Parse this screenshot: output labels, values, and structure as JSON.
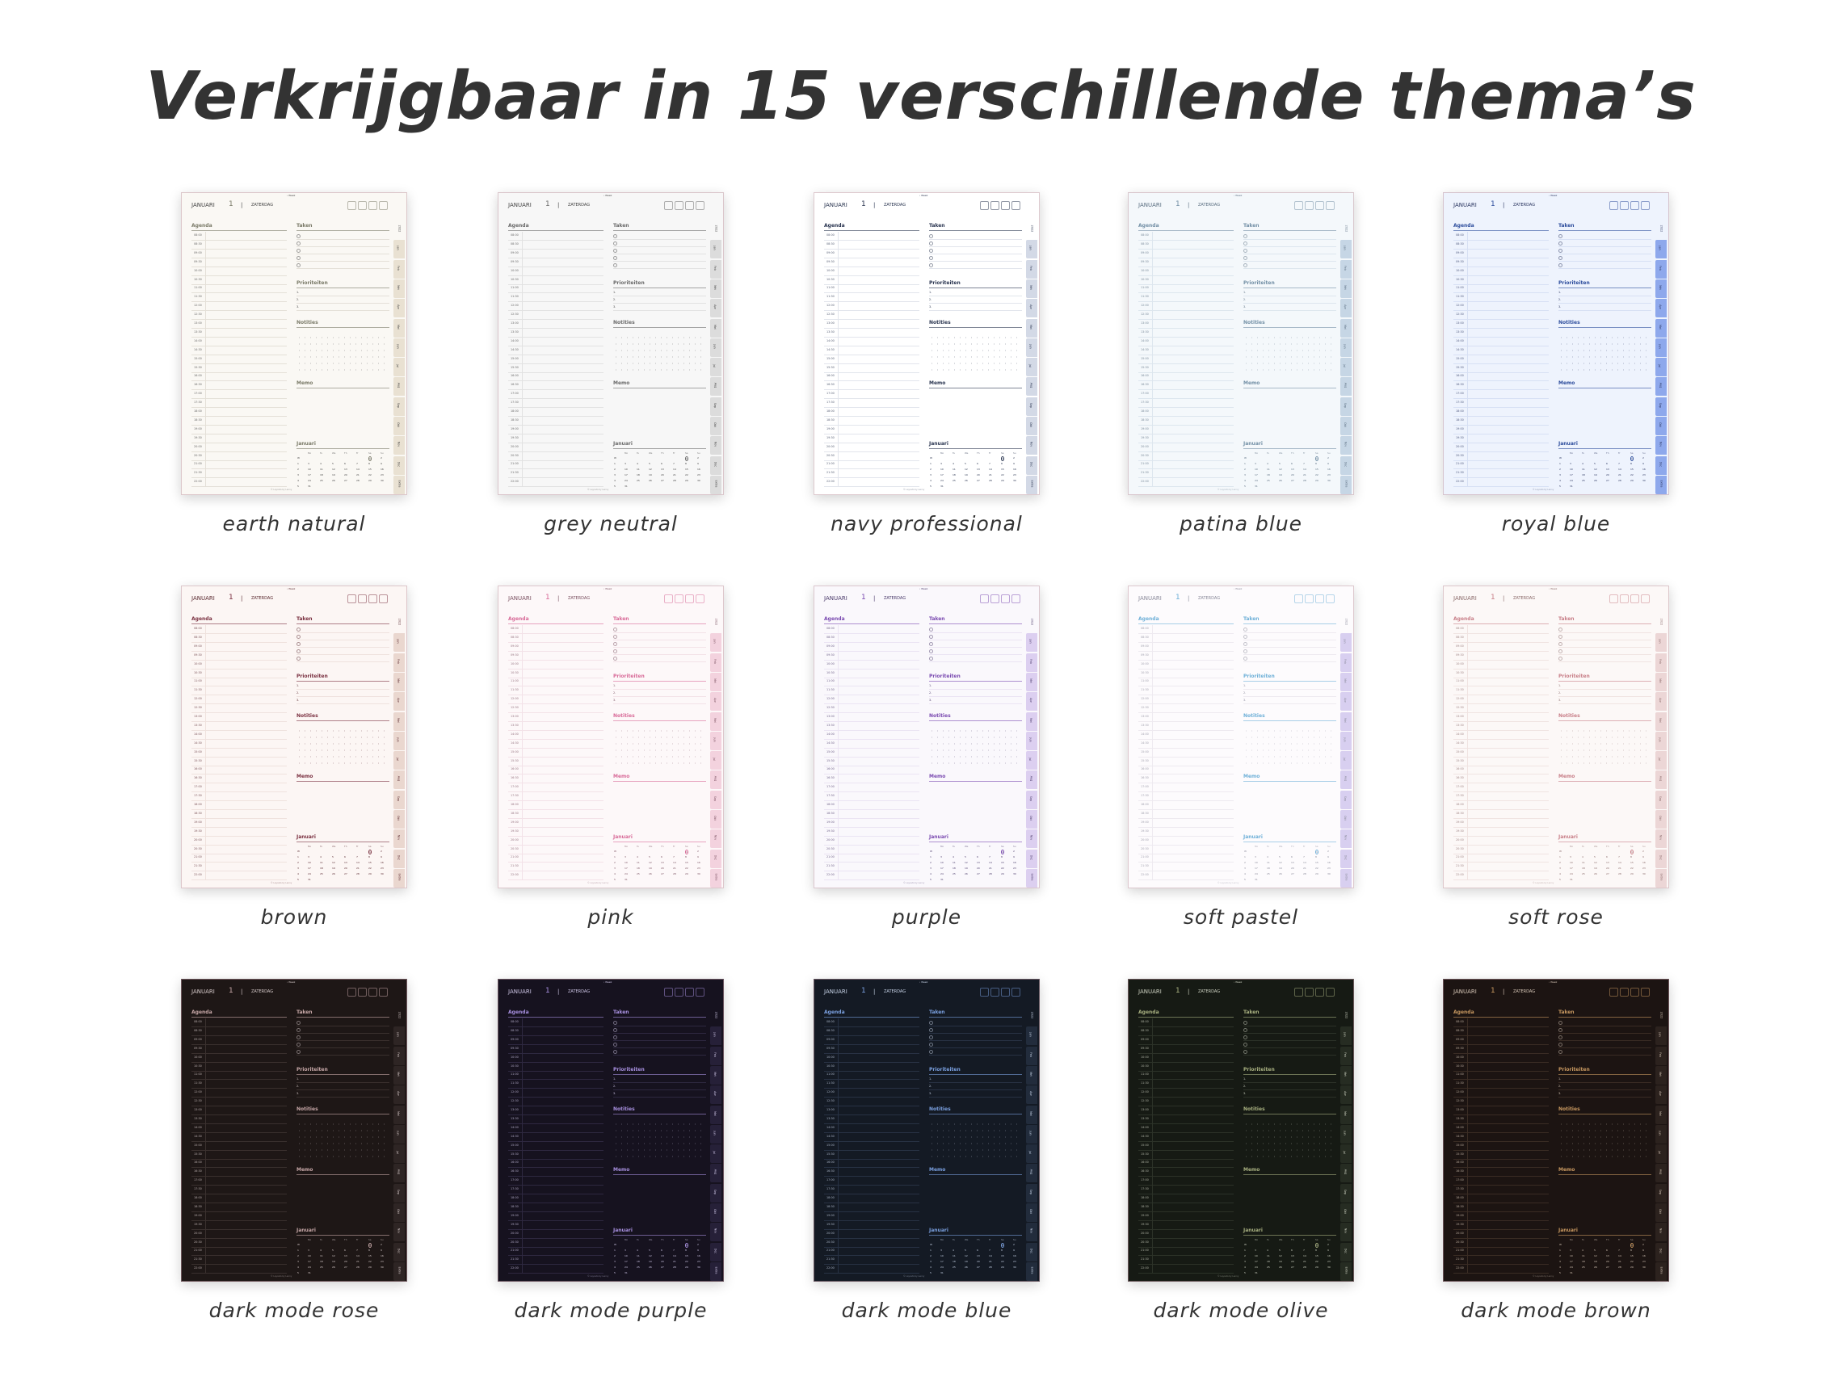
{
  "title": "Verkrijgbaar in 15 verschillende thema’s",
  "planner": {
    "nav": "‹ Week",
    "month": "JANUARI",
    "day": "1",
    "separator": "|",
    "weekday": "ZATERDAG",
    "agenda": "Agenda",
    "tasks": "Taken",
    "priorities": "Prioriteiten",
    "notes": "Notities",
    "memo": "Memo",
    "calendar_title": "Januari",
    "times": [
      "08:00",
      "08:30",
      "09:00",
      "09:30",
      "10:00",
      "10:30",
      "11:00",
      "11:30",
      "12:00",
      "12:30",
      "13:00",
      "13:30",
      "14:00",
      "14:30",
      "15:00",
      "15:30",
      "16:00",
      "16:30",
      "17:00",
      "17:30",
      "18:00",
      "18:30",
      "19:00",
      "19:30",
      "20:00",
      "20:30",
      "21:00",
      "21:30",
      "22:00"
    ],
    "priority_numbers": [
      "1.",
      "2.",
      "3."
    ],
    "weekdays": [
      "Mo",
      "Tu",
      "We",
      "Th",
      "Fr",
      "Sa",
      "Su"
    ],
    "weeks": [
      [
        "W",
        "",
        "",
        "",
        "",
        "",
        "1",
        "2"
      ],
      [
        "1",
        "3",
        "4",
        "5",
        "6",
        "7",
        "8",
        "9"
      ],
      [
        "2",
        "10",
        "11",
        "12",
        "13",
        "14",
        "15",
        "16"
      ],
      [
        "3",
        "17",
        "18",
        "19",
        "20",
        "21",
        "22",
        "23"
      ],
      [
        "4",
        "24",
        "25",
        "26",
        "27",
        "28",
        "29",
        "30"
      ],
      [
        "5",
        "31",
        "",
        "",
        "",
        "",
        "",
        ""
      ]
    ],
    "tabs": [
      "2022",
      "Jan",
      "Feb",
      "Mrt",
      "Apr",
      "Mei",
      "Jun",
      "Jul",
      "Aug",
      "Sep",
      "Okt",
      "Nov",
      "Dec",
      "Extra"
    ],
    "footer": "© Layouts by Lenny"
  },
  "themes": [
    {
      "name": "earth natural",
      "bg": "#faf8f4",
      "text": "#444444",
      "accent": "#7a7a68",
      "line": "#e4e0d8",
      "tab": "#e9e1d2"
    },
    {
      "name": "grey neutral",
      "bg": "#f7f7f7",
      "text": "#444444",
      "accent": "#6a6a6a",
      "line": "#e2e2e2",
      "tab": "#dcdcdc"
    },
    {
      "name": "navy professional",
      "bg": "#ffffff",
      "text": "#2a3550",
      "accent": "#2a3550",
      "line": "#e2e5ec",
      "tab": "#d3d9e6"
    },
    {
      "name": "patina blue",
      "bg": "#f4f8fb",
      "text": "#5a6e80",
      "accent": "#7390a6",
      "line": "#dde6ee",
      "tab": "#c6d6e5"
    },
    {
      "name": "royal blue",
      "bg": "#eef3fd",
      "text": "#2a3560",
      "accent": "#2c4c9c",
      "line": "#d7e0f4",
      "tab": "#8ea8ec"
    },
    {
      "name": "brown",
      "bg": "#fcf6f4",
      "text": "#5a2a30",
      "accent": "#7a3040",
      "line": "#efe2de",
      "tab": "#ead7cf"
    },
    {
      "name": "pink",
      "bg": "#fdf8f9",
      "text": "#7a5060",
      "accent": "#d86a98",
      "line": "#f3e2e8",
      "tab": "#f3d2de"
    },
    {
      "name": "purple",
      "bg": "#faf8fc",
      "text": "#4a3a6a",
      "accent": "#7a4ab0",
      "line": "#ebe4f3",
      "tab": "#dccff0"
    },
    {
      "name": "soft pastel",
      "bg": "#fdfbfd",
      "text": "#8a8a9a",
      "accent": "#6fb0d8",
      "line": "#eeeaf0",
      "tab": "#d8cff0"
    },
    {
      "name": "soft rose",
      "bg": "#fcf8f7",
      "text": "#8a6a6a",
      "accent": "#c87f88",
      "line": "#f0e4e2",
      "tab": "#ecd6d6"
    },
    {
      "name": "dark mode rose",
      "bg": "#1e1716",
      "text": "#d8cccc",
      "accent": "#c8a8a8",
      "line": "#3a302e",
      "tab": "#2e2524"
    },
    {
      "name": "dark mode purple",
      "bg": "#16121f",
      "text": "#d0c8e8",
      "accent": "#a890e0",
      "line": "#2e2840",
      "tab": "#262038"
    },
    {
      "name": "dark mode blue",
      "bg": "#141a24",
      "text": "#c8d4e8",
      "accent": "#7aa0e0",
      "line": "#283244",
      "tab": "#222c3c"
    },
    {
      "name": "dark mode olive",
      "bg": "#161a14",
      "text": "#d0d4c4",
      "accent": "#a8b080",
      "line": "#2c3228",
      "tab": "#262c22"
    },
    {
      "name": "dark mode brown",
      "bg": "#1c1412",
      "text": "#d8c8b8",
      "accent": "#c89860",
      "line": "#3a2c24",
      "tab": "#2c221e"
    }
  ]
}
